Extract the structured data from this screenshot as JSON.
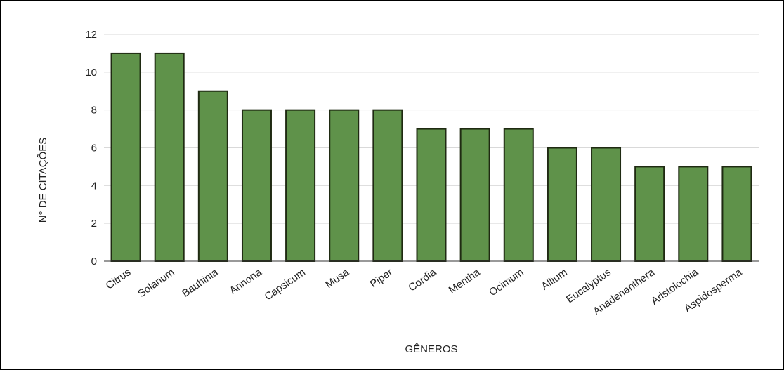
{
  "chart_data": {
    "type": "bar",
    "categories": [
      "Citrus",
      "Solanum",
      "Bauhinia",
      "Annona",
      "Capsicum",
      "Musa",
      "Piper",
      "Cordia",
      "Mentha",
      "Ocimum",
      "Allium",
      "Eucalyptus",
      "Anadenanthera",
      "Aristolochia",
      "Aspidosperma"
    ],
    "values": [
      11,
      11,
      9,
      8,
      8,
      8,
      8,
      7,
      7,
      7,
      6,
      6,
      5,
      5,
      5
    ],
    "xlabel": "GÊNEROS",
    "ylabel": "N° DE CITAÇÕES",
    "ylim": [
      0,
      12
    ],
    "yticks": [
      0,
      2,
      4,
      6,
      8,
      10,
      12
    ],
    "grid": true,
    "legend": "none",
    "colors": {
      "bar_fill": "#5f924a",
      "bar_stroke": "#1f2a12",
      "grid": "#d9d9d9",
      "axis": "#333333"
    }
  }
}
